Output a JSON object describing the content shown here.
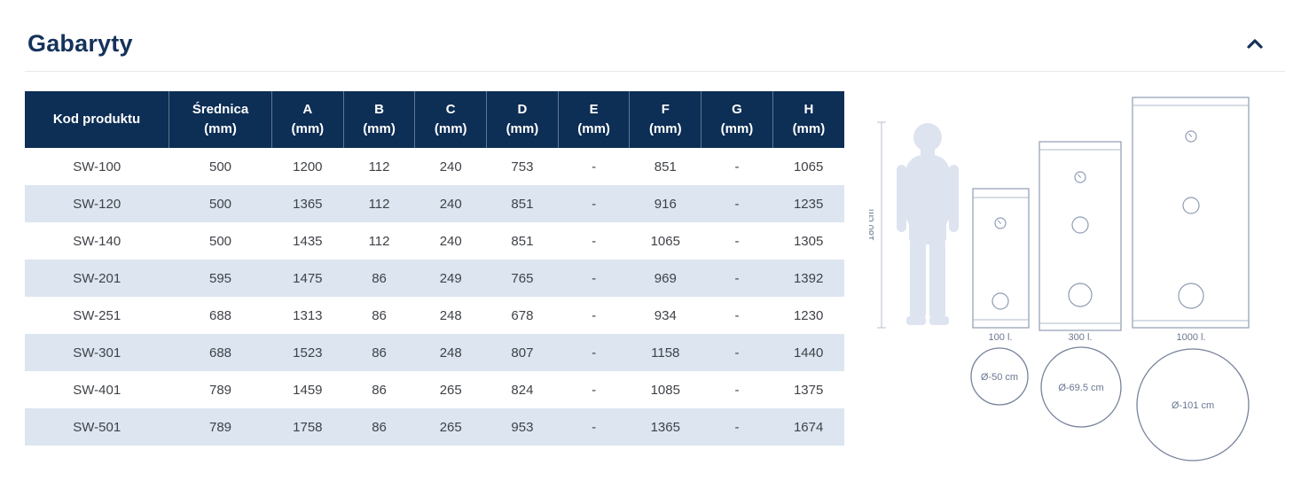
{
  "section": {
    "title": "Gabaryty"
  },
  "table": {
    "columns": [
      {
        "label": "Kod produktu",
        "sub": ""
      },
      {
        "label": "Średnica",
        "sub": "(mm)"
      },
      {
        "label": "A",
        "sub": "(mm)"
      },
      {
        "label": "B",
        "sub": "(mm)"
      },
      {
        "label": "C",
        "sub": "(mm)"
      },
      {
        "label": "D",
        "sub": "(mm)"
      },
      {
        "label": "E",
        "sub": "(mm)"
      },
      {
        "label": "F",
        "sub": "(mm)"
      },
      {
        "label": "G",
        "sub": "(mm)"
      },
      {
        "label": "H",
        "sub": "(mm)"
      }
    ],
    "rows": [
      [
        "SW-100",
        "500",
        "1200",
        "112",
        "240",
        "753",
        "-",
        "851",
        "-",
        "1065"
      ],
      [
        "SW-120",
        "500",
        "1365",
        "112",
        "240",
        "851",
        "-",
        "916",
        "-",
        "1235"
      ],
      [
        "SW-140",
        "500",
        "1435",
        "112",
        "240",
        "851",
        "-",
        "1065",
        "-",
        "1305"
      ],
      [
        "SW-201",
        "595",
        "1475",
        "86",
        "249",
        "765",
        "-",
        "969",
        "-",
        "1392"
      ],
      [
        "SW-251",
        "688",
        "1313",
        "86",
        "248",
        "678",
        "-",
        "934",
        "-",
        "1230"
      ],
      [
        "SW-301",
        "688",
        "1523",
        "86",
        "248",
        "807",
        "-",
        "1158",
        "-",
        "1440"
      ],
      [
        "SW-401",
        "789",
        "1459",
        "86",
        "265",
        "824",
        "-",
        "1085",
        "-",
        "1375"
      ],
      [
        "SW-501",
        "789",
        "1758",
        "86",
        "265",
        "953",
        "-",
        "1365",
        "-",
        "1674"
      ]
    ]
  },
  "diagram": {
    "height_label": "180 cm",
    "tanks": [
      {
        "label": "100 l.",
        "diameter": "Ø-50 cm"
      },
      {
        "label": "300 l.",
        "diameter": "Ø-69.5 cm"
      },
      {
        "label": "1000 l.",
        "diameter": "Ø-101 cm"
      }
    ]
  },
  "colors": {
    "header_bg": "#0d2e55",
    "row_alt": "#dce5f0",
    "title": "#15325b",
    "body_text": "#3f4248",
    "diagram_stroke": "#8e9cb4",
    "diagram_circle_stroke": "#76819b",
    "diagram_text": "#6a7690",
    "silhouette_fill": "#dde3ef"
  }
}
